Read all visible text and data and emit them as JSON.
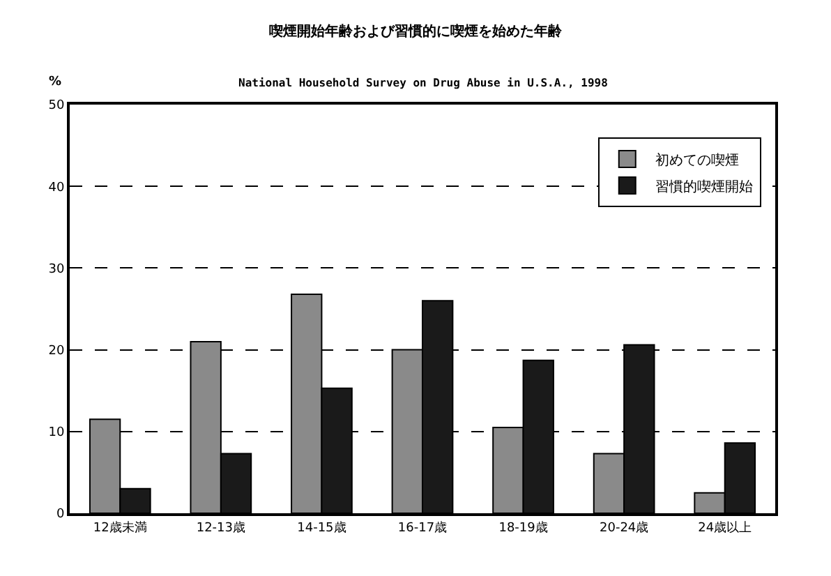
{
  "chart_data": {
    "type": "bar",
    "title": "喫煙開始年齢および習慣的に喫煙を始めた年齢",
    "subtitle": "National Household Survey on Drug Abuse in U.S.A., 1998",
    "ylabel": "%",
    "categories": [
      "12歳未満",
      "12-13歳",
      "14-15歳",
      "16-17歳",
      "18-19歳",
      "20-24歳",
      "24歳以上"
    ],
    "series": [
      {
        "name": "初めての喫煙",
        "color": "#8a8a8a",
        "values": [
          11.5,
          21,
          26.8,
          20,
          10.5,
          7.3,
          2.5
        ]
      },
      {
        "name": "習慣的喫煙開始",
        "color": "#1a1a1a",
        "values": [
          3,
          7.3,
          15.3,
          26,
          18.7,
          20.6,
          8.6
        ]
      }
    ],
    "ylim": [
      0,
      50
    ],
    "yticks": [
      0,
      10,
      20,
      30,
      40,
      50
    ],
    "grid": "y",
    "line_style": "dashed",
    "legend": "top right"
  }
}
